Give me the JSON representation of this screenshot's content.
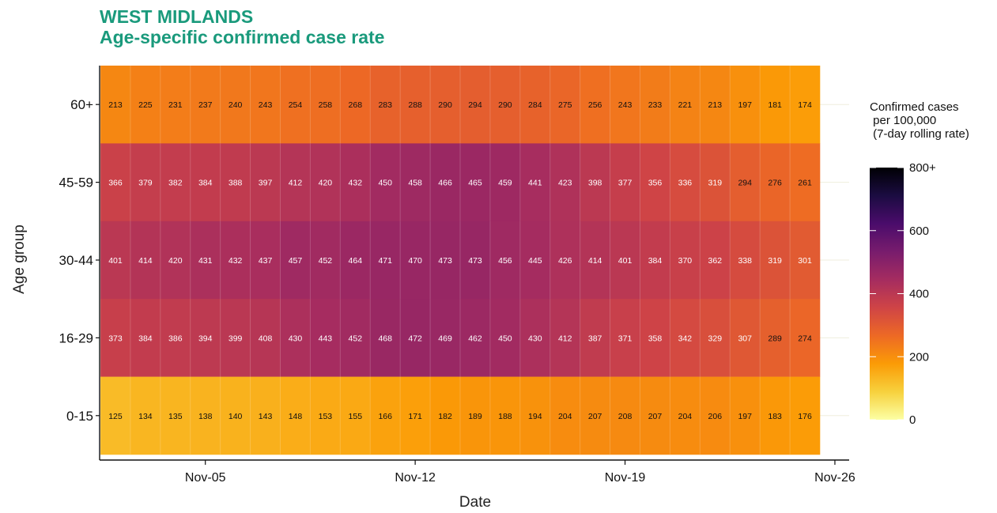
{
  "chart_data": {
    "type": "heatmap",
    "title": "WEST MIDLANDS",
    "subtitle": "Age-specific confirmed case rate",
    "xlabel": "Date",
    "ylabel": "Age group",
    "x_ticks": [
      "Nov-05",
      "Nov-12",
      "Nov-19",
      "Nov-26"
    ],
    "x_dates": [
      "Nov-02",
      "Nov-03",
      "Nov-04",
      "Nov-05",
      "Nov-06",
      "Nov-07",
      "Nov-08",
      "Nov-09",
      "Nov-10",
      "Nov-11",
      "Nov-12",
      "Nov-13",
      "Nov-14",
      "Nov-15",
      "Nov-16",
      "Nov-17",
      "Nov-18",
      "Nov-19",
      "Nov-20",
      "Nov-21",
      "Nov-22",
      "Nov-23",
      "Nov-24",
      "Nov-25"
    ],
    "rows": [
      {
        "group": "60+",
        "values": [
          213,
          225,
          231,
          237,
          240,
          243,
          254,
          258,
          268,
          283,
          288,
          290,
          294,
          290,
          284,
          275,
          256,
          243,
          233,
          221,
          213,
          197,
          181,
          174
        ]
      },
      {
        "group": "45-59",
        "values": [
          366,
          379,
          382,
          384,
          388,
          397,
          412,
          420,
          432,
          450,
          458,
          466,
          465,
          459,
          441,
          423,
          398,
          377,
          356,
          336,
          319,
          294,
          276,
          261
        ]
      },
      {
        "group": "30-44",
        "values": [
          401,
          414,
          420,
          431,
          432,
          437,
          457,
          452,
          464,
          471,
          470,
          473,
          473,
          456,
          445,
          426,
          414,
          401,
          384,
          370,
          362,
          338,
          319,
          301
        ]
      },
      {
        "group": "16-29",
        "values": [
          373,
          384,
          386,
          394,
          399,
          408,
          430,
          443,
          452,
          468,
          472,
          469,
          462,
          450,
          430,
          412,
          387,
          371,
          358,
          342,
          329,
          307,
          289,
          274
        ]
      },
      {
        "group": "0-15",
        "values": [
          125,
          134,
          135,
          138,
          140,
          143,
          148,
          153,
          155,
          166,
          171,
          182,
          189,
          188,
          194,
          204,
          207,
          208,
          207,
          204,
          206,
          197,
          183,
          176
        ]
      }
    ],
    "legend": {
      "title": "Confirmed cases\n per 100,000\n (7-day rolling rate)",
      "ticks": [
        {
          "value": 0,
          "label": "0"
        },
        {
          "value": 200,
          "label": "200"
        },
        {
          "value": 400,
          "label": "400"
        },
        {
          "value": 600,
          "label": "600"
        },
        {
          "value": 800,
          "label": "800+"
        }
      ],
      "range": [
        0,
        800
      ],
      "palette": "inferno-reversed",
      "colors": [
        "#fcffa4",
        "#f7d13d",
        "#fb9b06",
        "#ed6925",
        "#cf4446",
        "#a52c60",
        "#781c6d",
        "#4a0c6b",
        "#1b0c41",
        "#000004"
      ]
    }
  }
}
